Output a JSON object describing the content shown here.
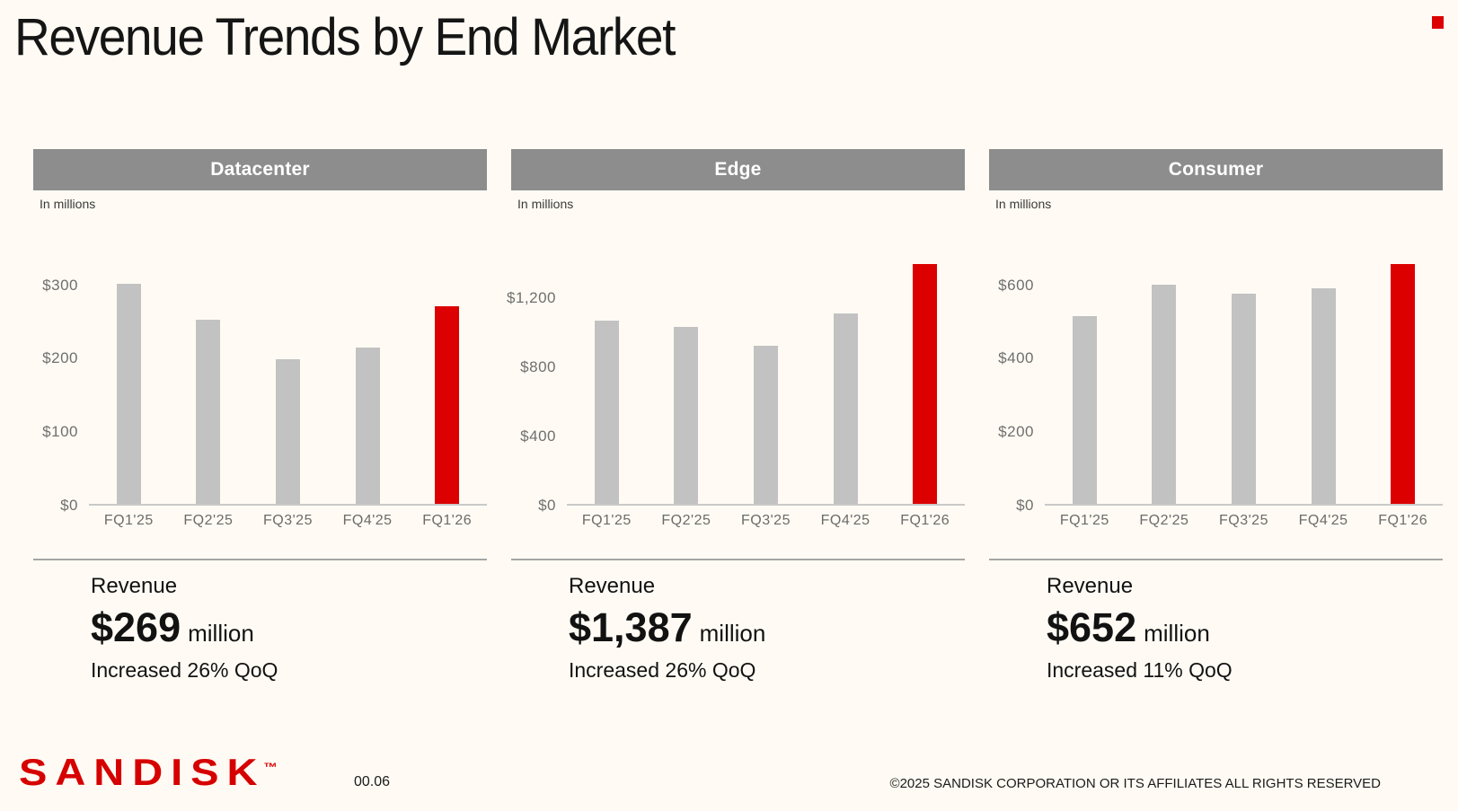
{
  "title": "Revenue Trends by End Market",
  "colors": {
    "background": "#FFFBF4",
    "header_bar_gray": "#8D8D8D",
    "bar_gray": "#C2C2C2",
    "highlight_red": "#DC0000",
    "divider_gray": "#A5A5A5"
  },
  "panels": [
    {
      "header": "Datacenter",
      "units_label": "In millions",
      "revenue_label": "Revenue",
      "revenue_value": "$269",
      "revenue_unit": "million",
      "change_note": "Increased 26% QoQ"
    },
    {
      "header": "Edge",
      "units_label": "In millions",
      "revenue_label": "Revenue",
      "revenue_value": "$1,387",
      "revenue_unit": "million",
      "change_note": "Increased 26% QoQ"
    },
    {
      "header": "Consumer",
      "units_label": "In millions",
      "revenue_label": "Revenue",
      "revenue_value": "$652",
      "revenue_unit": "million",
      "change_note": "Increased 11% QoQ"
    }
  ],
  "chart_data": [
    {
      "type": "bar",
      "title": "Datacenter",
      "ylabel": "In millions",
      "categories": [
        "FQ1'25",
        "FQ2'25",
        "FQ3'25",
        "FQ4'25",
        "FQ1'26"
      ],
      "values": [
        300,
        250,
        197,
        213,
        269
      ],
      "highlight_index": 4,
      "yticks": [
        0,
        100,
        200,
        300
      ],
      "ytick_labels": [
        "$0",
        "$100",
        "$200",
        "$300"
      ],
      "ylim": [
        0,
        330
      ],
      "grid": false,
      "legend": false,
      "bar_color": "#C2C2C2",
      "highlight_color": "#DC0000"
    },
    {
      "type": "bar",
      "title": "Edge",
      "ylabel": "In millions",
      "categories": [
        "FQ1'25",
        "FQ2'25",
        "FQ3'25",
        "FQ4'25",
        "FQ1'26"
      ],
      "values": [
        1060,
        1020,
        915,
        1100,
        1387
      ],
      "highlight_index": 4,
      "yticks": [
        0,
        400,
        800,
        1200
      ],
      "ytick_labels": [
        "$0",
        "$400",
        "$800",
        "$1,200"
      ],
      "ylim": [
        0,
        1400
      ],
      "grid": false,
      "legend": false,
      "bar_color": "#C2C2C2",
      "highlight_color": "#DC0000"
    },
    {
      "type": "bar",
      "title": "Consumer",
      "ylabel": "In millions",
      "categories": [
        "FQ1'25",
        "FQ2'25",
        "FQ3'25",
        "FQ4'25",
        "FQ1'26"
      ],
      "values": [
        512,
        597,
        572,
        587,
        652
      ],
      "highlight_index": 4,
      "yticks": [
        0,
        200,
        400,
        600
      ],
      "ytick_labels": [
        "$0",
        "$200",
        "$400",
        "$600"
      ],
      "ylim": [
        0,
        660
      ],
      "grid": false,
      "legend": false,
      "bar_color": "#C2C2C2",
      "highlight_color": "#DC0000"
    }
  ],
  "footer": {
    "logo_text": "SANDISK",
    "logo_tm": "™",
    "page_number": "00.06",
    "copyright": "©2025 SANDISK CORPORATION OR ITS AFFILIATES ALL RIGHTS RESERVED"
  }
}
